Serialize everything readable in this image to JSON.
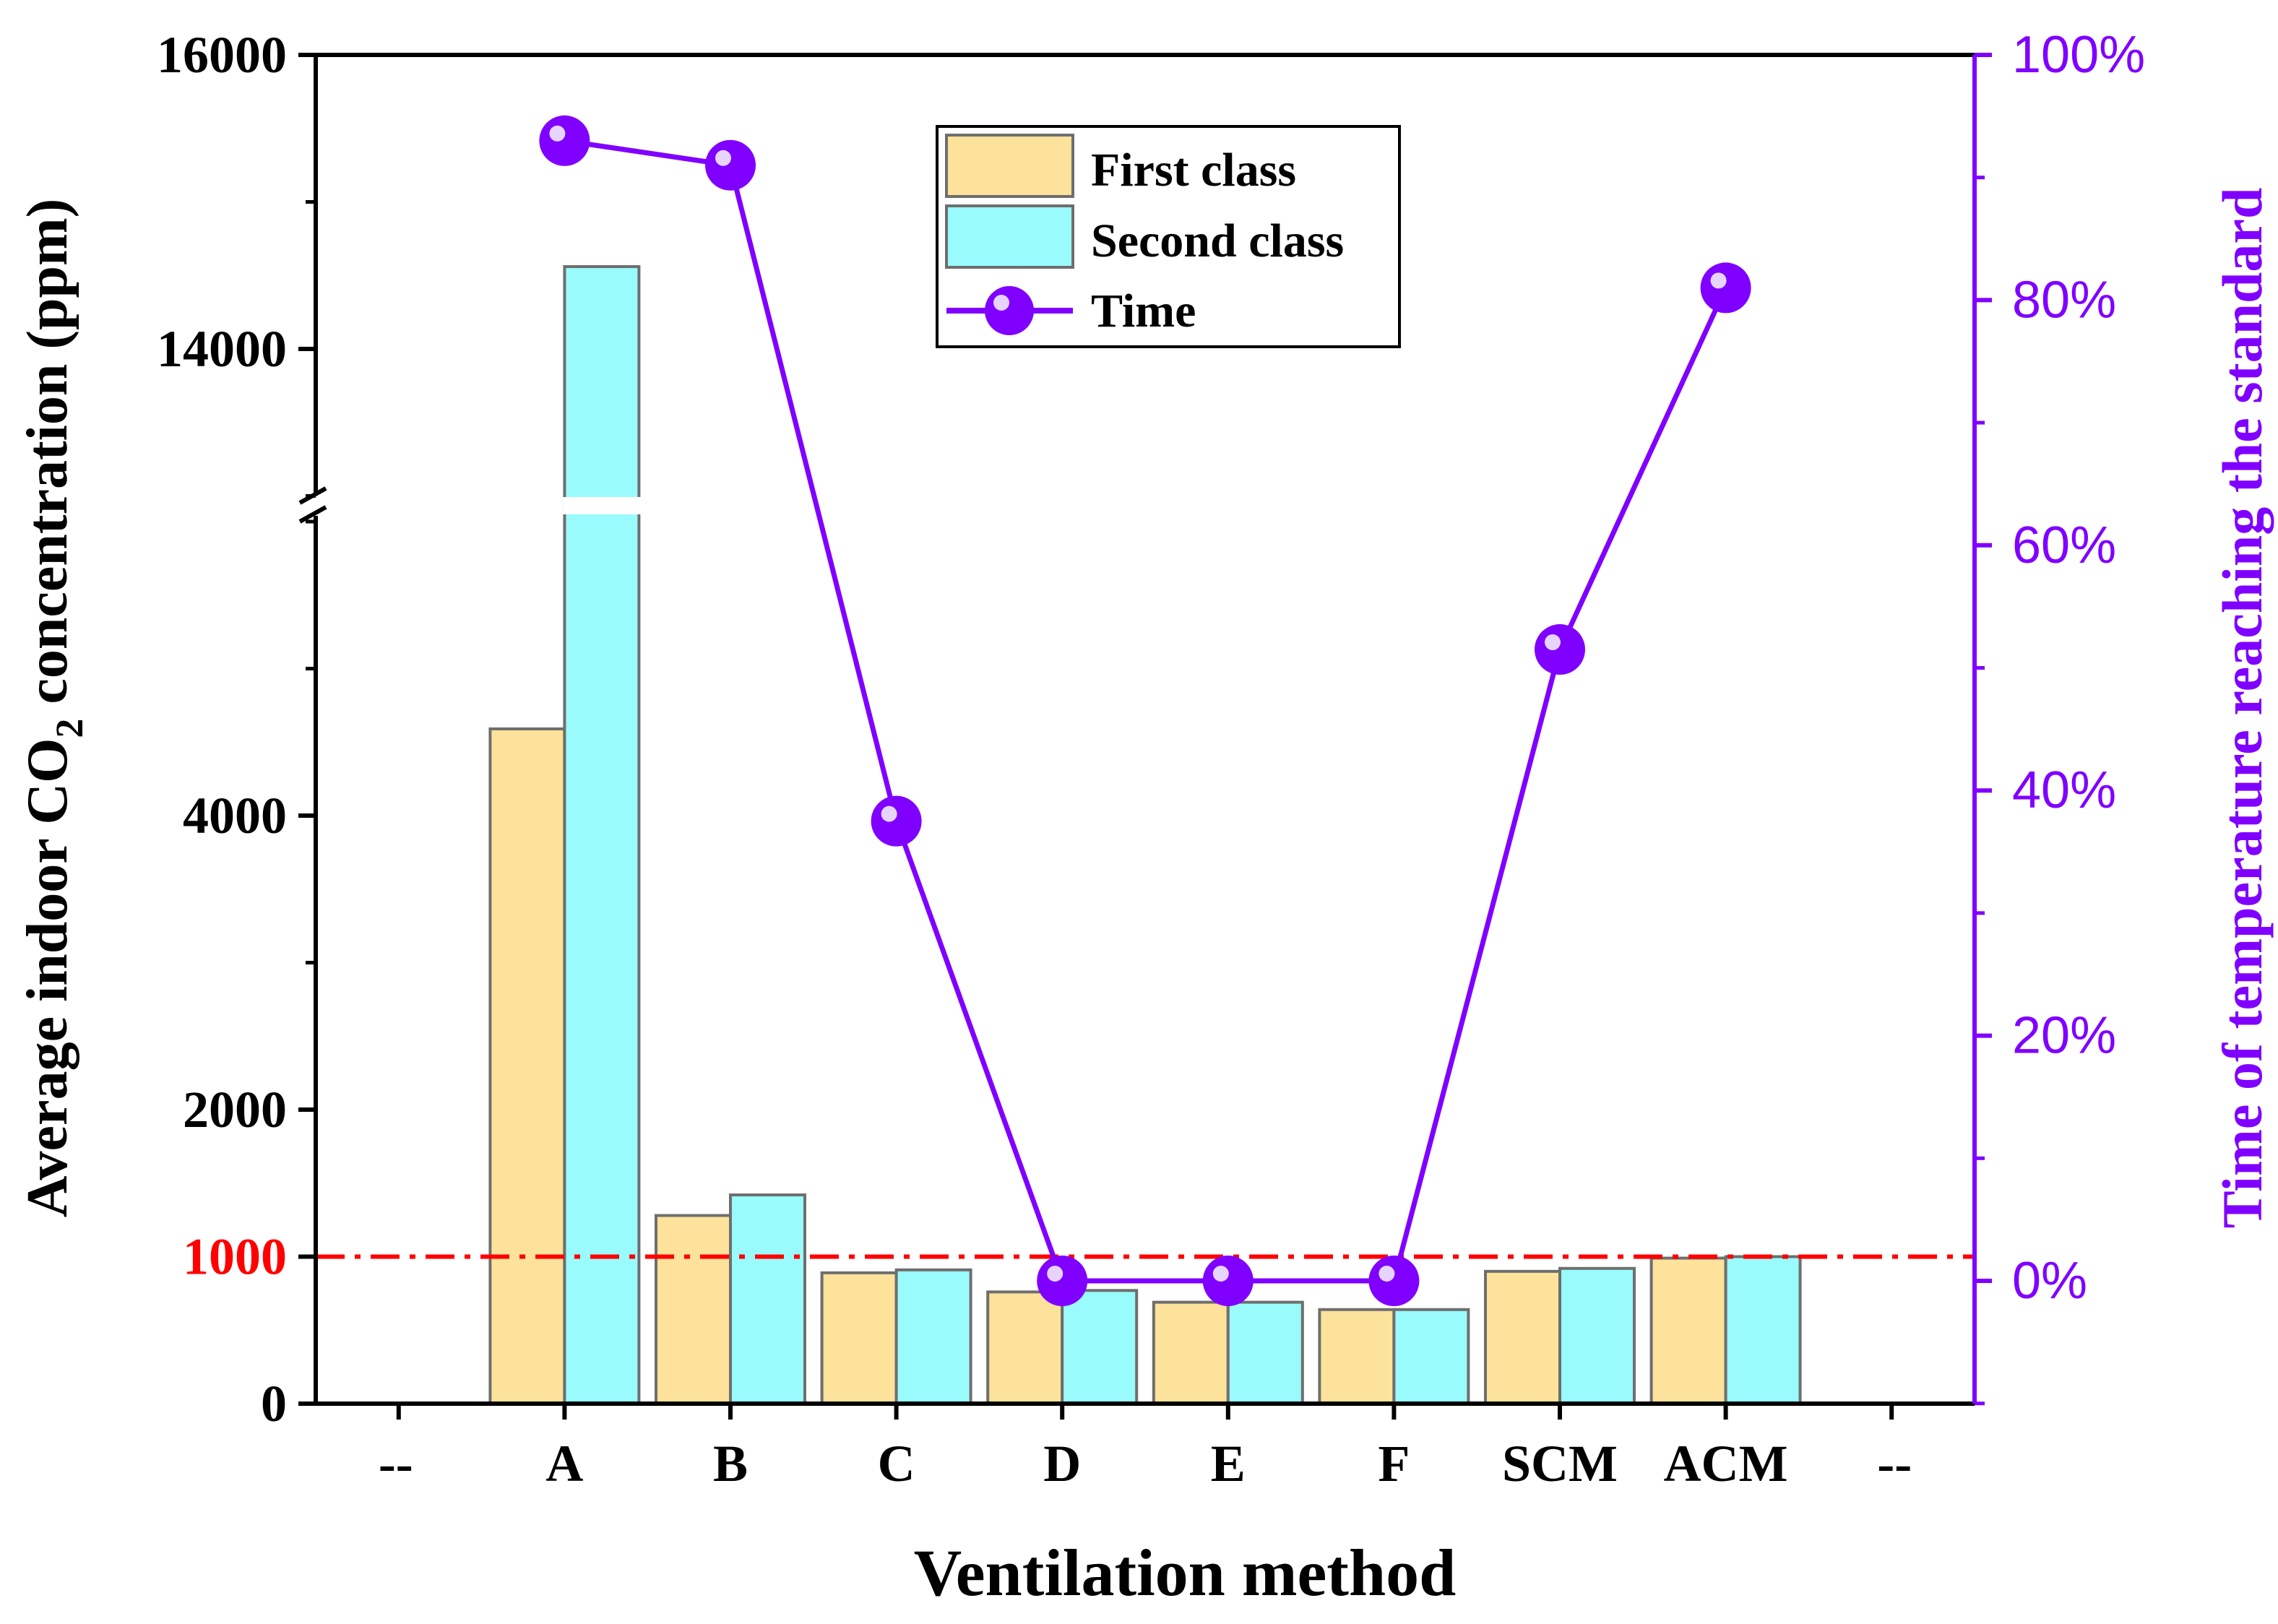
{
  "chart_data": {
    "type": "bar",
    "xlabel": "Ventilation method",
    "ylabel": {
      "main": "Average indoor CO",
      "sub": "2",
      "tail": " concentration (ppm)"
    },
    "y2label": "Time of temperature reaching the standard",
    "x_end_labels": [
      "--",
      "--"
    ],
    "categories": [
      "A",
      "B",
      "C",
      "D",
      "E",
      "F",
      "SCM",
      "ACM"
    ],
    "series": [
      {
        "name": "First class",
        "color": "#FCE29A",
        "values": [
          4590,
          1280,
          890,
          760,
          690,
          640,
          900,
          990
        ]
      },
      {
        "name": "Second class",
        "color": "#99FBFB",
        "values": [
          14560,
          1420,
          910,
          770,
          690,
          640,
          920,
          1000
        ]
      }
    ],
    "line_series": {
      "name": "Time",
      "axis": "right",
      "color": "#8000FF",
      "values": [
        93,
        91,
        37.5,
        0,
        0,
        0,
        51.5,
        81
      ]
    },
    "y_axis": {
      "lower_range": [
        0,
        6000
      ],
      "upper_range": [
        12800,
        16000
      ],
      "break": true,
      "tick_labels": [
        "0",
        "1000",
        "2000",
        "4000",
        "14000",
        "16000"
      ],
      "tick_values": [
        0,
        1000,
        2000,
        4000,
        14000,
        16000
      ],
      "highlight_tick": "1000",
      "highlight_color": "#FF0000"
    },
    "y2_axis": {
      "range": [
        -10,
        100
      ],
      "ticks": [
        0,
        20,
        40,
        60,
        80,
        100
      ],
      "tick_labels": [
        "0%",
        "20%",
        "40%",
        "60%",
        "80%",
        "100%"
      ],
      "color": "#8000FF"
    },
    "reference_line": {
      "value": 1000,
      "color": "#FF0000",
      "style": "dash-dot"
    },
    "legend": {
      "position": "top-center",
      "entries": [
        "First class",
        "Second class",
        "Time"
      ]
    }
  }
}
